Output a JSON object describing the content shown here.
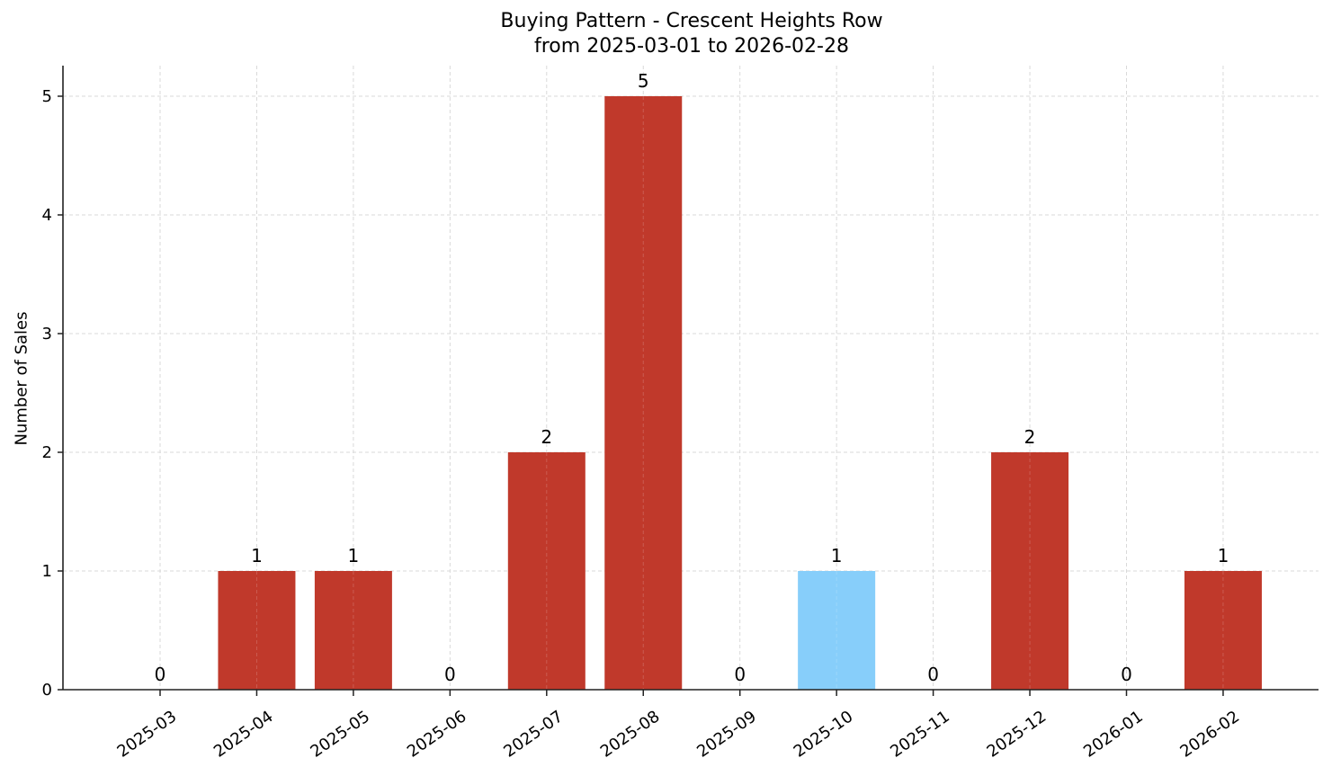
{
  "chart_data": {
    "type": "bar",
    "title": "Buying Pattern - Crescent Heights Row",
    "subtitle": "from 2025-03-01 to 2026-02-28",
    "xlabel": "",
    "ylabel": "Number of Sales",
    "categories": [
      "2025-03",
      "2025-04",
      "2025-05",
      "2025-06",
      "2025-07",
      "2025-08",
      "2025-09",
      "2025-10",
      "2025-11",
      "2025-12",
      "2026-01",
      "2026-02"
    ],
    "values": [
      0,
      1,
      1,
      0,
      2,
      5,
      0,
      1,
      0,
      2,
      0,
      1
    ],
    "bar_colors": [
      "#c0392b",
      "#c0392b",
      "#c0392b",
      "#c0392b",
      "#c0392b",
      "#c0392b",
      "#c0392b",
      "#87cefa",
      "#c0392b",
      "#c0392b",
      "#c0392b",
      "#c0392b"
    ],
    "highlight_category": "2025-10",
    "yticks": [
      0,
      1,
      2,
      3,
      4,
      5
    ],
    "ylim": [
      0,
      5.25
    ],
    "grid": true,
    "grid_style": "dashed",
    "data_labels": true,
    "legend": null
  },
  "colors": {
    "primary_bar": "#c0392b",
    "highlight_bar": "#87cefa",
    "grid": "#d9d9d9",
    "axis": "#222222"
  }
}
